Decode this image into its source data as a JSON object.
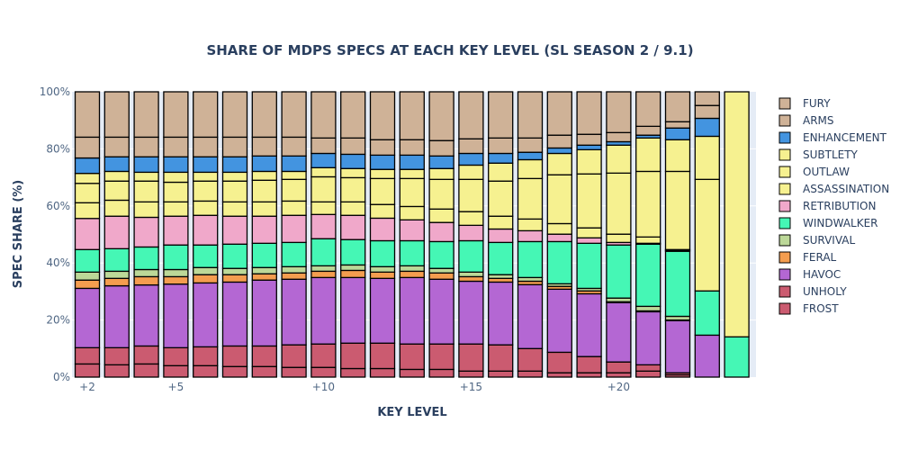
{
  "chart_data": {
    "type": "bar",
    "stacked": true,
    "title": "SHARE OF MDPS SPECS AT EACH KEY LEVEL (SL SEASON 2 / 9.1)",
    "xlabel": "KEY LEVEL",
    "ylabel": "SPEC SHARE (%)",
    "ylim": [
      0,
      100
    ],
    "y_ticks": [
      "0%",
      "20%",
      "40%",
      "60%",
      "80%",
      "100%"
    ],
    "y_tick_values": [
      0,
      20,
      40,
      60,
      80,
      100
    ],
    "x_ticks": [
      "+2",
      "+5",
      "+10",
      "+15",
      "+20"
    ],
    "x_tick_values": [
      2,
      5,
      10,
      15,
      20
    ],
    "grid": true,
    "legend_placement": "right",
    "categories": [
      2,
      3,
      4,
      5,
      6,
      7,
      8,
      9,
      10,
      11,
      12,
      13,
      14,
      15,
      16,
      17,
      18,
      19,
      20,
      21,
      22,
      23,
      24
    ],
    "series": [
      {
        "name": "FROST",
        "color": "#cb5b70",
        "values": [
          4.6,
          4.3,
          4.6,
          4.0,
          4.0,
          3.7,
          3.7,
          3.4,
          3.4,
          3.0,
          3.0,
          2.7,
          2.7,
          2.1,
          2.1,
          2.1,
          1.5,
          1.5,
          1.5,
          2.1,
          0.8,
          0,
          0
        ]
      },
      {
        "name": "UNHOLY",
        "color": "#cb5b70",
        "values": [
          5.7,
          6.0,
          6.3,
          6.3,
          6.6,
          7.2,
          7.2,
          7.9,
          8.2,
          8.9,
          8.9,
          8.9,
          8.9,
          9.5,
          9.2,
          7.9,
          7.2,
          5.7,
          3.8,
          2.2,
          0.7,
          0,
          0
        ]
      },
      {
        "name": "HAVOC",
        "color": "#b467d3",
        "values": [
          20.8,
          21.7,
          21.4,
          22.3,
          22.4,
          22.4,
          23.1,
          23.0,
          23.3,
          23.0,
          22.7,
          23.3,
          22.7,
          22.0,
          22.0,
          22.4,
          22.1,
          22.0,
          20.8,
          18.6,
          18.3,
          14.7,
          0
        ]
      },
      {
        "name": "FERAL",
        "color": "#f49d4f",
        "values": [
          2.9,
          2.6,
          2.9,
          2.6,
          2.9,
          2.6,
          2.2,
          2.2,
          2.2,
          2.5,
          2.2,
          2.2,
          2.2,
          1.6,
          1.3,
          1.2,
          1.0,
          1.0,
          0.3,
          0.3,
          0.2,
          0,
          0
        ]
      },
      {
        "name": "SURVIVAL",
        "color": "#bcd898",
        "values": [
          2.8,
          2.5,
          2.5,
          2.5,
          2.5,
          2.2,
          2.2,
          2.2,
          1.9,
          1.9,
          1.9,
          1.9,
          1.6,
          1.6,
          1.3,
          1.3,
          0.9,
          0.9,
          1.3,
          1.6,
          1.3,
          0,
          0
        ]
      },
      {
        "name": "WINDWALKER",
        "color": "#45f7b5",
        "values": [
          7.9,
          7.9,
          7.9,
          8.6,
          7.9,
          8.5,
          8.5,
          8.5,
          9.5,
          8.9,
          9.1,
          8.8,
          9.4,
          11.0,
          11.3,
          12.6,
          14.8,
          15.8,
          18.6,
          21.8,
          22.8,
          15.5,
          14.1
        ]
      },
      {
        "name": "RETRIBUTION",
        "color": "#f0a8ca",
        "values": [
          10.9,
          11.4,
          10.4,
          10.1,
          10.4,
          9.8,
          9.5,
          9.5,
          8.5,
          8.5,
          7.9,
          7.3,
          6.7,
          5.4,
          4.7,
          3.8,
          2.6,
          1.9,
          0.9,
          0.3,
          0.3,
          0,
          0
        ]
      },
      {
        "name": "ASSASSINATION",
        "color": "#f6f190",
        "values": [
          5.5,
          5.6,
          5.4,
          5.0,
          5.0,
          5.0,
          5.0,
          5.0,
          4.4,
          4.7,
          4.8,
          4.7,
          4.7,
          4.8,
          4.5,
          4.1,
          3.7,
          3.5,
          2.9,
          2.2,
          0.3,
          39.1,
          85.9
        ]
      },
      {
        "name": "OUTLAW",
        "color": "#f6f190",
        "values": [
          6.8,
          6.7,
          7.3,
          6.9,
          7.0,
          7.3,
          7.6,
          7.6,
          8.8,
          8.5,
          9.1,
          9.8,
          10.4,
          11.3,
          12.3,
          14.2,
          17.1,
          18.9,
          21.4,
          23.0,
          27.4,
          15.1,
          0
        ]
      },
      {
        "name": "SUBTLETY",
        "color": "#f6f190",
        "values": [
          3.5,
          3.4,
          3.1,
          3.5,
          3.1,
          3.1,
          3.1,
          2.8,
          3.2,
          3.2,
          3.2,
          3.2,
          3.8,
          5.0,
          6.3,
          6.6,
          7.5,
          8.5,
          9.8,
          11.7,
          11.1,
          0,
          0
        ]
      },
      {
        "name": "ENHANCEMENT",
        "color": "#4394e0",
        "values": [
          5.4,
          5.1,
          5.4,
          5.4,
          5.4,
          5.4,
          5.4,
          5.4,
          5.0,
          5.0,
          5.0,
          5.0,
          4.4,
          4.1,
          3.4,
          2.6,
          1.9,
          1.6,
          1.2,
          1.0,
          4.1,
          6.3,
          0
        ]
      },
      {
        "name": "ARMS",
        "color": "#cfb297",
        "values": [
          7.3,
          6.9,
          6.9,
          6.9,
          6.9,
          6.9,
          6.6,
          6.6,
          5.4,
          5.7,
          5.4,
          5.4,
          5.4,
          5.1,
          5.4,
          5.0,
          4.5,
          3.8,
          3.2,
          3.1,
          2.2,
          4.5,
          0
        ]
      },
      {
        "name": "FURY",
        "color": "#cfb297",
        "values": [
          15.9,
          15.9,
          15.9,
          15.9,
          15.9,
          15.9,
          15.9,
          15.9,
          16.2,
          16.2,
          16.8,
          16.8,
          17.1,
          16.5,
          16.2,
          16.2,
          15.2,
          14.9,
          14.3,
          12.1,
          10.5,
          4.8,
          0
        ]
      }
    ]
  }
}
